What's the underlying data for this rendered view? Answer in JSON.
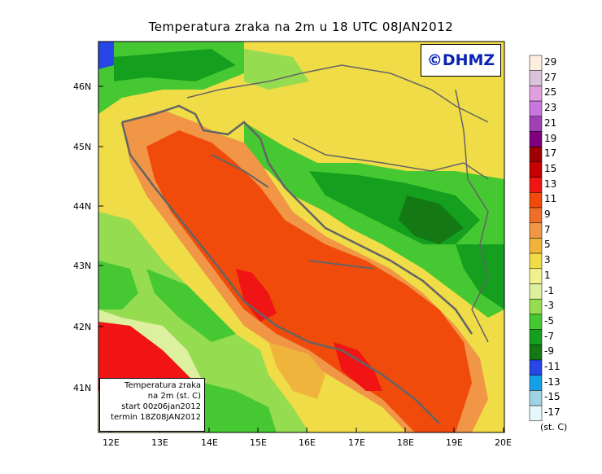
{
  "title": "Temperatura zraka na 2m u 18 UTC 08JAN2012",
  "logo_text": "©DHMZ",
  "info_box": {
    "line1": "Temperatura zraka",
    "line2": "na 2m (st. C)",
    "line3": "start 00z06jan2012",
    "line4": "termin 18Z08JAN2012"
  },
  "lat_labels": [
    "46N",
    "45N",
    "44N",
    "43N",
    "42N",
    "41N"
  ],
  "lon_labels": [
    "12E",
    "13E",
    "14E",
    "15E",
    "16E",
    "17E",
    "18E",
    "19E",
    "20E"
  ],
  "colorbar": {
    "labels": [
      "29",
      "27",
      "25",
      "23",
      "21",
      "19",
      "17",
      "15",
      "13",
      "11",
      "9",
      "7",
      "5",
      "3",
      "1",
      "-1",
      "-3",
      "-5",
      "-7",
      "-9",
      "-11",
      "-13",
      "-15",
      "-17"
    ],
    "colors": [
      "#fdeee0",
      "#dcc3dc",
      "#e0a0e0",
      "#c878dc",
      "#a040b4",
      "#800080",
      "#a00000",
      "#c80000",
      "#f01414",
      "#f04b0a",
      "#f06e28",
      "#f09646",
      "#f0b43c",
      "#f0dc46",
      "#f0f08c",
      "#dcf0a0",
      "#96dc50",
      "#46c832",
      "#14a01e",
      "#147814",
      "#2846e6",
      "#14a0e6",
      "#a0d2e6",
      "#e6f8fa"
    ],
    "units": "(st. C)"
  }
}
